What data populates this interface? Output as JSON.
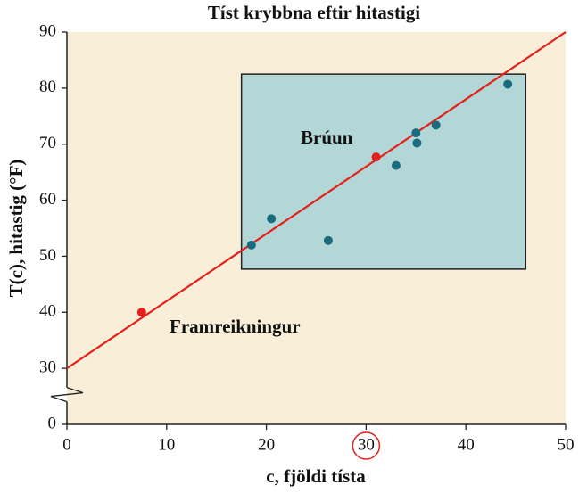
{
  "chart_data": {
    "type": "scatter",
    "title": "Tíst krybbna eftir hitastigi",
    "x_label": "c, fjöldi tísta",
    "y_label": "T(c), hitastig (°F)",
    "xlim": [
      0,
      50
    ],
    "ylim": [
      0,
      90
    ],
    "y_break": [
      0,
      30
    ],
    "xticks": [
      0,
      10,
      20,
      30,
      40,
      50
    ],
    "yticks": [
      0,
      30,
      40,
      50,
      60,
      70,
      80,
      90
    ],
    "highlight_xtick": 30,
    "background": "#f9eed8",
    "region": {
      "x": [
        17.5,
        46
      ],
      "y": [
        47.7,
        82.5
      ],
      "color": "#b3d7d6"
    },
    "series": [
      {
        "kind": "points",
        "color": "#1b6b80",
        "x": [
          18.5,
          20.5,
          26.2,
          33,
          35,
          35.1,
          37,
          44.2
        ],
        "values": [
          52,
          56.7,
          52.8,
          66.2,
          72,
          70.2,
          73.4,
          80.7
        ]
      },
      {
        "kind": "points",
        "color": "#e3201b",
        "x": [
          7.5,
          31
        ],
        "values": [
          40,
          67.7
        ]
      },
      {
        "kind": "line",
        "color": "#e3201b",
        "x": [
          0,
          50
        ],
        "values": [
          30,
          90
        ]
      }
    ],
    "annotations": [
      "Brúun",
      "Framreikningur"
    ]
  }
}
